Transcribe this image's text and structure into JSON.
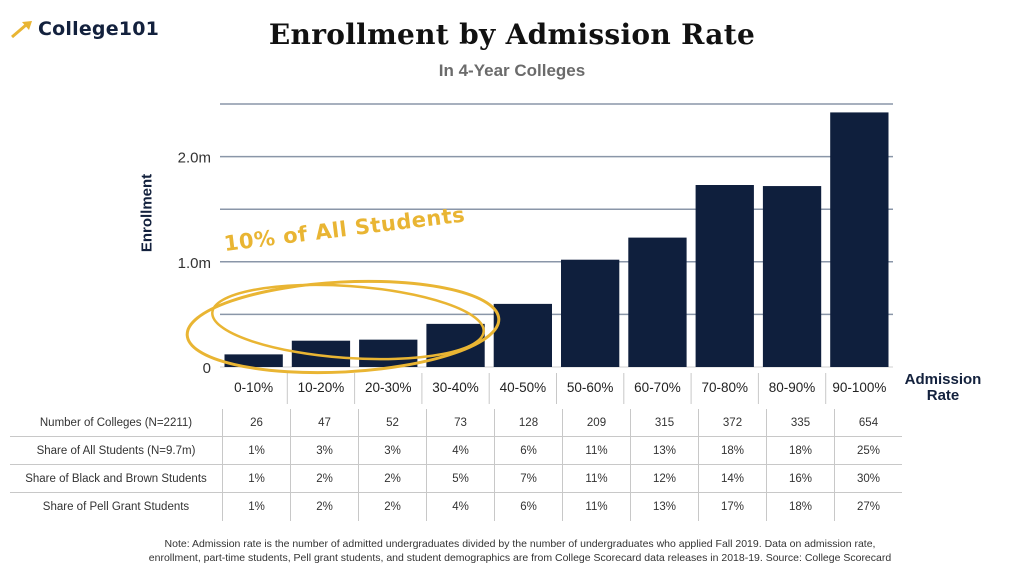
{
  "header": {
    "logo_text": "College101",
    "title": "Enrollment by Admission Rate",
    "subtitle": "In 4-Year Colleges"
  },
  "annotation": {
    "text": "10% of All Students",
    "color": "#e9b533"
  },
  "chart_data": {
    "type": "bar",
    "categories": [
      "0-10%",
      "10-20%",
      "20-30%",
      "30-40%",
      "40-50%",
      "50-60%",
      "60-70%",
      "70-80%",
      "80-90%",
      "90-100%"
    ],
    "values": [
      0.12,
      0.25,
      0.26,
      0.41,
      0.6,
      1.02,
      1.23,
      1.73,
      1.72,
      2.42
    ],
    "unit": "million students",
    "ylabel": "Enrollment",
    "xlabel": "Admission Rate",
    "ylim": [
      0,
      2.5
    ],
    "yticks": [
      {
        "value": 0,
        "label": "0"
      },
      {
        "value": 1.0,
        "label": "1.0m"
      },
      {
        "value": 2.0,
        "label": "2.0m"
      }
    ],
    "gridlines": [
      0.5,
      1.0,
      1.5,
      2.0,
      2.5
    ],
    "grid": true,
    "bar_color": "#0f1f3d",
    "grid_color": "#8a96a8"
  },
  "table": {
    "rows": [
      {
        "label": "Number of Colleges (N=2211)",
        "values": [
          "26",
          "47",
          "52",
          "73",
          "128",
          "209",
          "315",
          "372",
          "335",
          "654"
        ]
      },
      {
        "label": "Share of All Students (N=9.7m)",
        "values": [
          "1%",
          "3%",
          "3%",
          "4%",
          "6%",
          "11%",
          "13%",
          "18%",
          "18%",
          "25%"
        ]
      },
      {
        "label": "Share of Black and Brown Students",
        "values": [
          "1%",
          "2%",
          "2%",
          "5%",
          "7%",
          "11%",
          "12%",
          "14%",
          "16%",
          "30%"
        ]
      },
      {
        "label": "Share of Pell Grant Students",
        "values": [
          "1%",
          "2%",
          "2%",
          "4%",
          "6%",
          "11%",
          "13%",
          "17%",
          "18%",
          "27%"
        ]
      }
    ]
  },
  "note": {
    "line1": "Note: Admission rate is the number of admitted undergraduates divided by the number of undergraduates who applied Fall 2019. Data on admission rate,",
    "line2": "enrollment, part-time students, Pell grant students, and student demographics are from College Scorecard data releases in 2018-19. Source: College Scorecard"
  }
}
